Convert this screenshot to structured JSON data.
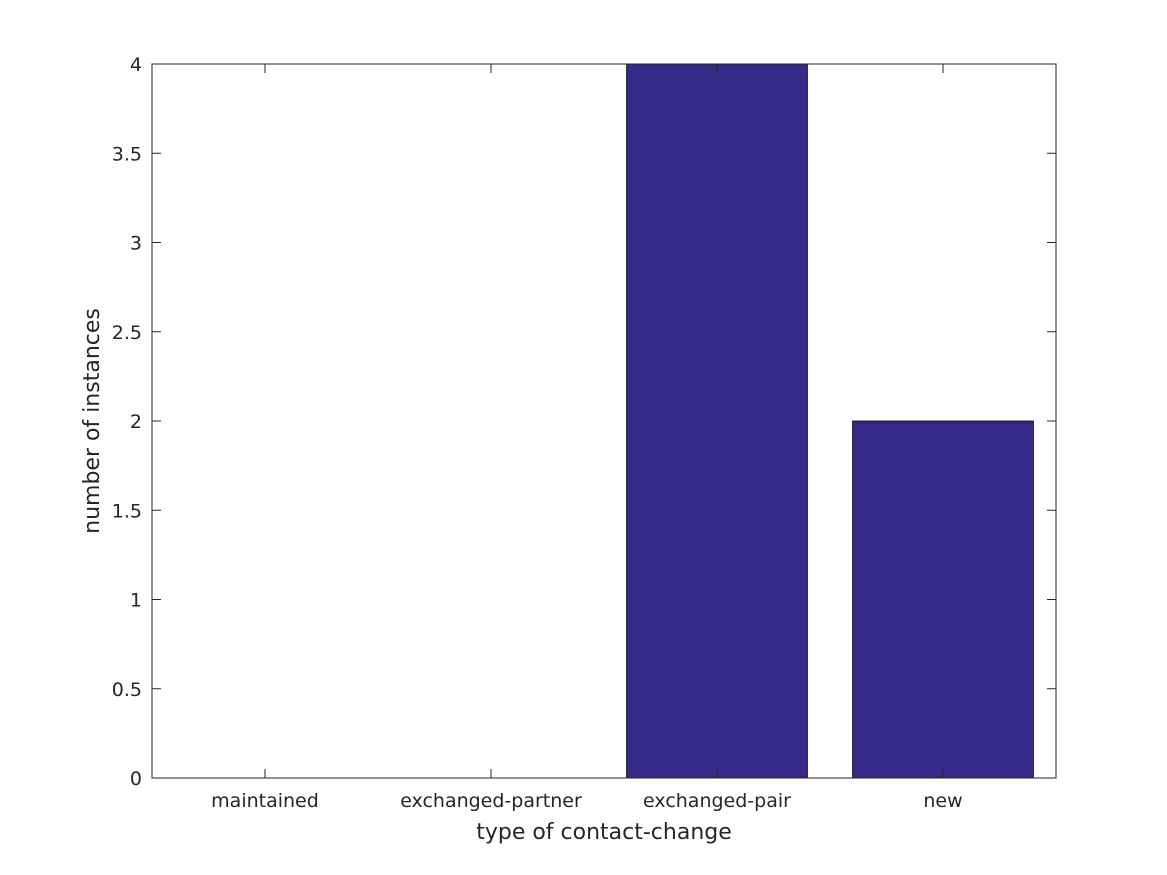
{
  "chart_data": {
    "type": "bar",
    "categories": [
      "maintained",
      "exchanged-partner",
      "exchanged-pair",
      "new"
    ],
    "values": [
      0,
      0,
      4,
      2
    ],
    "xlabel": "type of contact-change",
    "ylabel": "number of instances",
    "ylim": [
      0,
      4
    ],
    "yticks": [
      "0",
      "0.5",
      "1",
      "1.5",
      "2",
      "2.5",
      "3",
      "3.5",
      "4"
    ],
    "bar_color": "#352a87",
    "axis_color": "#262626",
    "grid": false
  }
}
